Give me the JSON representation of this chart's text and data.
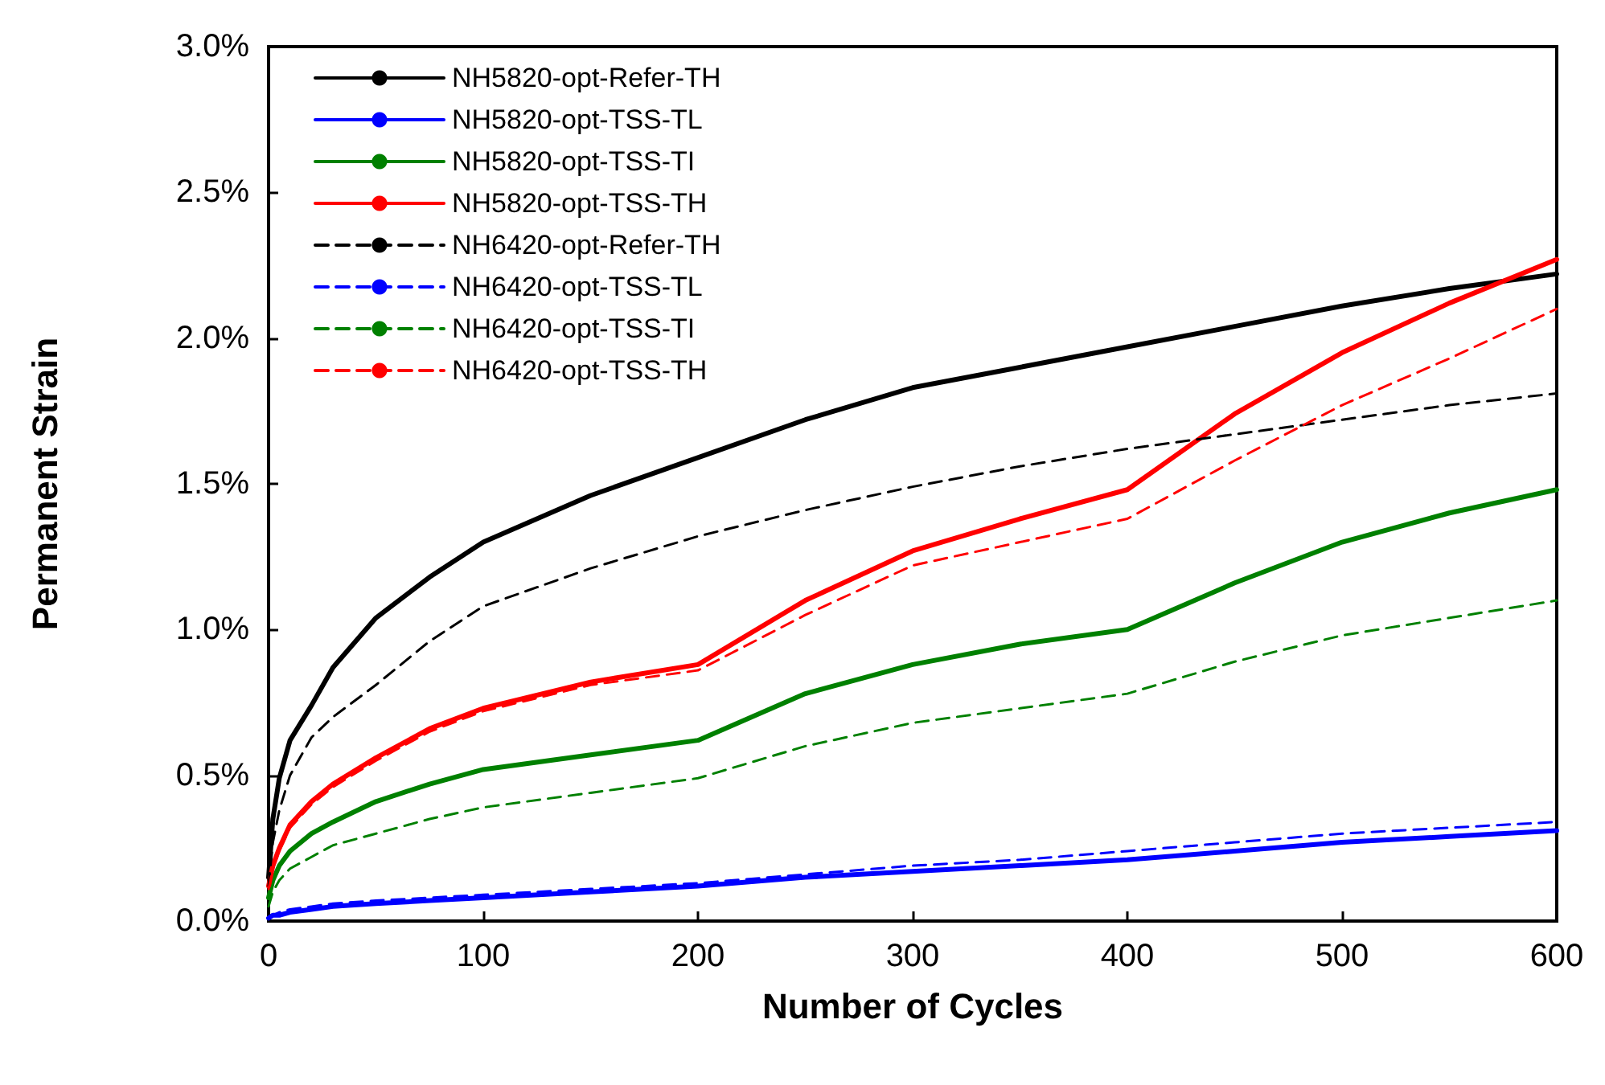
{
  "chart_data": {
    "type": "line",
    "xlabel": "Number of Cycles",
    "ylabel": "Permanent Strain",
    "x": [
      0,
      2,
      5,
      10,
      20,
      30,
      50,
      75,
      100,
      150,
      200,
      250,
      300,
      350,
      400,
      450,
      500,
      550,
      600
    ],
    "xlim": [
      0,
      600
    ],
    "xticks": [
      0,
      100,
      200,
      300,
      400,
      500,
      600
    ],
    "ylim": [
      0,
      3.0
    ],
    "yticks": [
      {
        "value": 0,
        "label": "0.0%"
      },
      {
        "value": 0.5,
        "label": "0.5%"
      },
      {
        "value": 1.0,
        "label": "1.0%"
      },
      {
        "value": 1.5,
        "label": "1.5%"
      },
      {
        "value": 2.0,
        "label": "2.0%"
      },
      {
        "value": 2.5,
        "label": "2.5%"
      },
      {
        "value": 3.0,
        "label": "3.0%"
      }
    ],
    "grid": false,
    "legend": "top left",
    "marker": "none",
    "series": [
      {
        "name": "NH5820-opt-Refer-TH",
        "color": "#000000",
        "line_style": "solid",
        "values": [
          0.15,
          0.35,
          0.49,
          0.62,
          0.74,
          0.87,
          1.04,
          1.18,
          1.3,
          1.46,
          1.59,
          1.72,
          1.83,
          1.9,
          1.97,
          2.04,
          2.11,
          2.17,
          2.22
        ]
      },
      {
        "name": "NH5820-opt-TSS-TL",
        "color": "#0000ff",
        "line_style": "solid",
        "values": [
          0.01,
          0.02,
          0.02,
          0.03,
          0.04,
          0.05,
          0.06,
          0.07,
          0.08,
          0.1,
          0.12,
          0.15,
          0.17,
          0.19,
          0.21,
          0.24,
          0.27,
          0.29,
          0.31
        ]
      },
      {
        "name": "NH5820-opt-TSS-TI",
        "color": "#008000",
        "line_style": "solid",
        "values": [
          0.08,
          0.14,
          0.19,
          0.24,
          0.3,
          0.34,
          0.41,
          0.47,
          0.52,
          0.57,
          0.62,
          0.78,
          0.88,
          0.95,
          1.0,
          1.16,
          1.3,
          1.4,
          1.48
        ]
      },
      {
        "name": "NH5820-opt-TSS-TH",
        "color": "#ff0000",
        "line_style": "solid",
        "values": [
          0.12,
          0.19,
          0.25,
          0.33,
          0.41,
          0.47,
          0.56,
          0.66,
          0.73,
          0.82,
          0.88,
          1.1,
          1.27,
          1.38,
          1.48,
          1.74,
          1.95,
          2.12,
          2.27
        ]
      },
      {
        "name": "NH6420-opt-Refer-TH",
        "color": "#000000",
        "line_style": "dashed",
        "values": [
          0.12,
          0.27,
          0.38,
          0.5,
          0.63,
          0.7,
          0.81,
          0.96,
          1.08,
          1.21,
          1.32,
          1.41,
          1.49,
          1.56,
          1.62,
          1.67,
          1.72,
          1.77,
          1.81
        ]
      },
      {
        "name": "NH6420-opt-TSS-TL",
        "color": "#0000ff",
        "line_style": "dashed",
        "values": [
          0.01,
          0.02,
          0.03,
          0.04,
          0.05,
          0.06,
          0.07,
          0.08,
          0.09,
          0.11,
          0.13,
          0.16,
          0.19,
          0.21,
          0.24,
          0.27,
          0.3,
          0.32,
          0.34
        ]
      },
      {
        "name": "NH6420-opt-TSS-TI",
        "color": "#008000",
        "line_style": "dashed",
        "values": [
          0.05,
          0.1,
          0.14,
          0.18,
          0.22,
          0.26,
          0.3,
          0.35,
          0.39,
          0.44,
          0.49,
          0.6,
          0.68,
          0.73,
          0.78,
          0.89,
          0.98,
          1.04,
          1.1
        ]
      },
      {
        "name": "NH6420-opt-TSS-TH",
        "color": "#ff0000",
        "line_style": "dashed",
        "values": [
          0.11,
          0.18,
          0.24,
          0.32,
          0.4,
          0.46,
          0.55,
          0.65,
          0.72,
          0.81,
          0.86,
          1.05,
          1.22,
          1.3,
          1.38,
          1.58,
          1.77,
          1.93,
          2.1
        ]
      }
    ]
  }
}
